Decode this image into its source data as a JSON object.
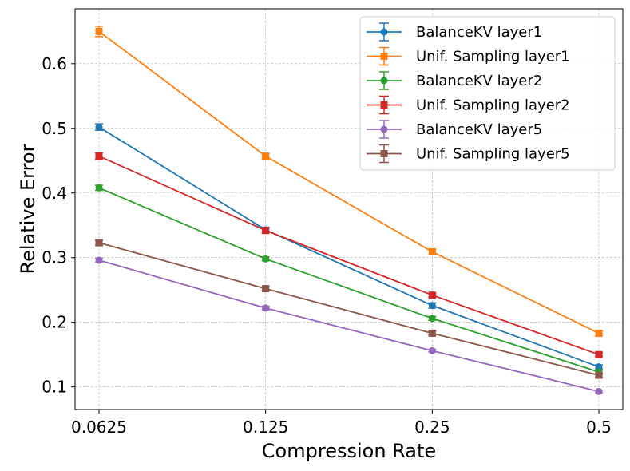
{
  "chart_data": {
    "type": "line",
    "title": "",
    "xlabel": "Compression Rate",
    "ylabel": "Relative Error",
    "x": [
      "0.0625",
      "0.125",
      "0.25",
      "0.5"
    ],
    "xscale": "log2",
    "ylim": [
      0.065,
      0.685
    ],
    "yticks": [
      "0.1",
      "0.2",
      "0.3",
      "0.4",
      "0.5",
      "0.6"
    ],
    "grid": true,
    "legend_position": "top-right",
    "series": [
      {
        "name": "BalanceKV layer1",
        "color": "#1f77b4",
        "marker": "circle",
        "values": [
          0.502,
          0.343,
          0.226,
          0.131
        ],
        "errors": [
          0.005,
          0.004,
          0.004,
          0.003
        ]
      },
      {
        "name": "Unif. Sampling layer1",
        "color": "#ff7f0e",
        "marker": "square",
        "values": [
          0.65,
          0.457,
          0.309,
          0.183
        ],
        "errors": [
          0.008,
          0.004,
          0.004,
          0.004
        ]
      },
      {
        "name": "BalanceKV layer2",
        "color": "#2ca02c",
        "marker": "circle",
        "values": [
          0.408,
          0.298,
          0.206,
          0.123
        ],
        "errors": [
          0.004,
          0.003,
          0.003,
          0.003
        ]
      },
      {
        "name": "Unif. Sampling layer2",
        "color": "#d62728",
        "marker": "square",
        "values": [
          0.457,
          0.342,
          0.242,
          0.15
        ],
        "errors": [
          0.005,
          0.004,
          0.003,
          0.003
        ]
      },
      {
        "name": "BalanceKV layer5",
        "color": "#9467bd",
        "marker": "circle",
        "values": [
          0.296,
          0.222,
          0.156,
          0.093
        ],
        "errors": [
          0.003,
          0.003,
          0.002,
          0.002
        ]
      },
      {
        "name": "Unif. Sampling layer5",
        "color": "#8c564b",
        "marker": "square",
        "values": [
          0.323,
          0.252,
          0.183,
          0.118
        ],
        "errors": [
          0.004,
          0.003,
          0.003,
          0.003
        ]
      }
    ]
  }
}
